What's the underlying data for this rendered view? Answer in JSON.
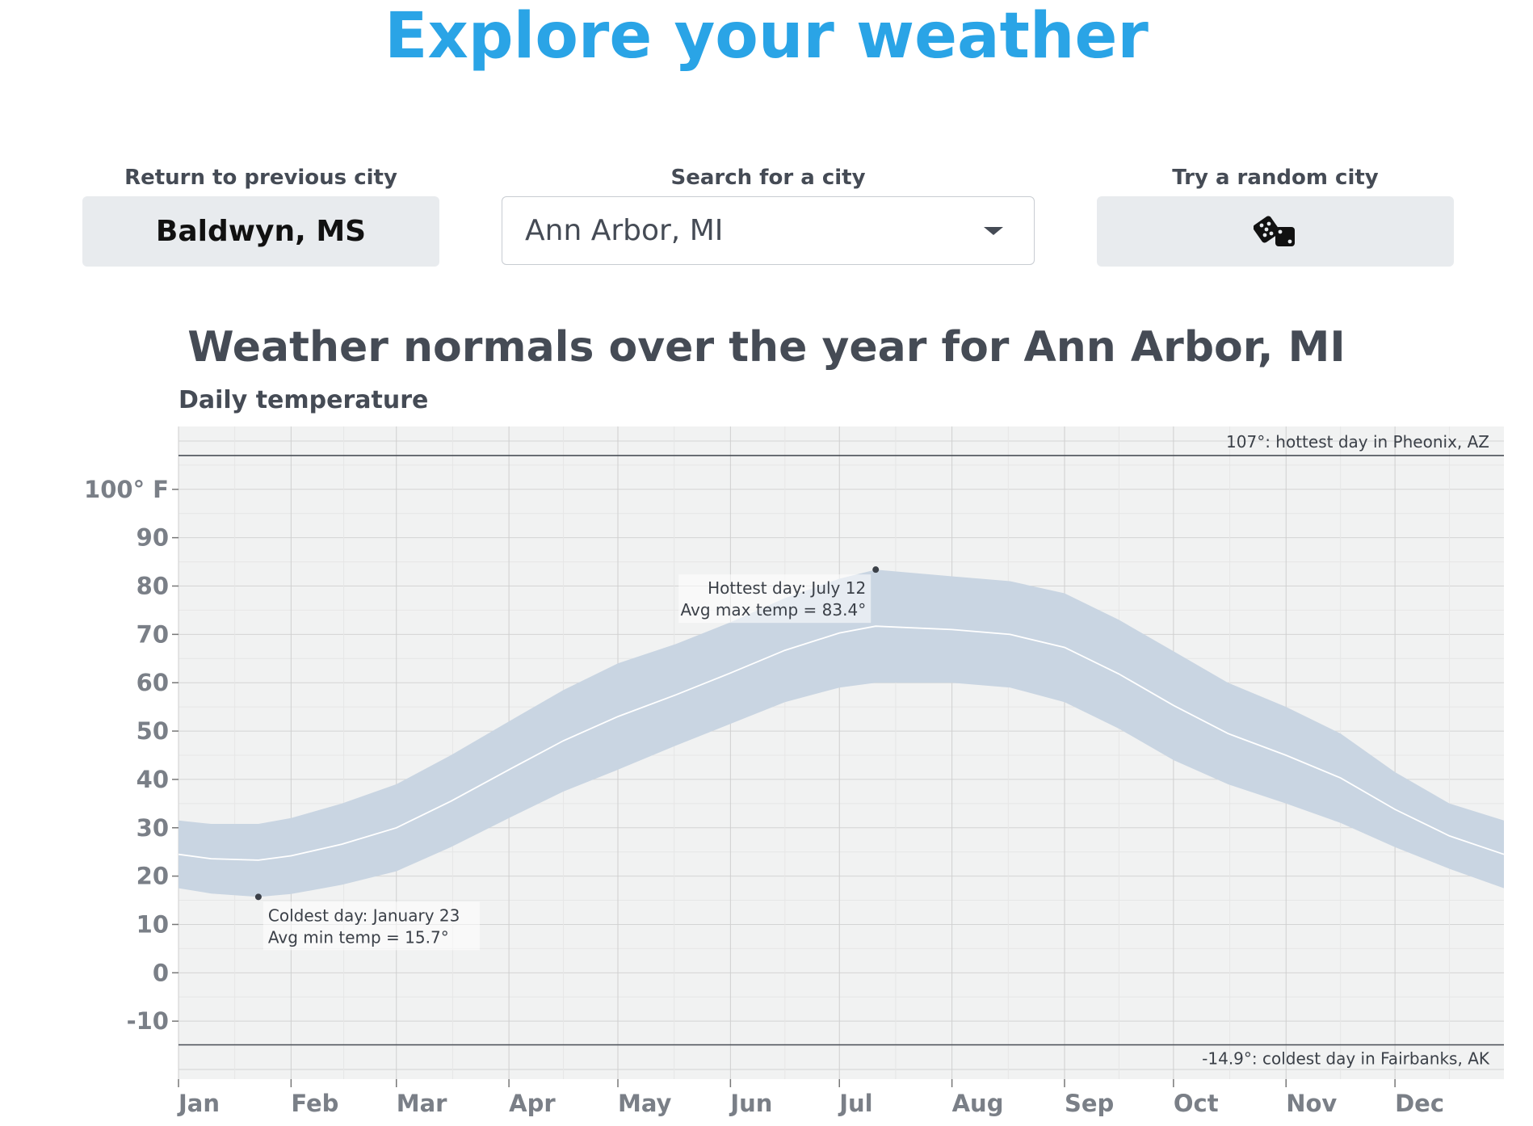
{
  "header": {
    "title": "Explore your weather"
  },
  "controls": {
    "previous": {
      "label": "Return to previous city",
      "value": "Baldwyn, MS"
    },
    "search": {
      "label": "Search for a city",
      "value": "Ann Arbor, MI"
    },
    "random": {
      "label": "Try a random city",
      "icon": "dice-icon"
    }
  },
  "section": {
    "title": "Weather normals over the year for Ann Arbor, MI"
  },
  "chart_data": {
    "type": "area",
    "title": "Daily temperature",
    "y_unit_label": "100° F",
    "yticks": [
      100,
      90,
      80,
      70,
      60,
      50,
      40,
      30,
      20,
      10,
      0,
      -10
    ],
    "ylim": [
      -22,
      113
    ],
    "xlim": [
      1,
      366
    ],
    "months": [
      {
        "label": "Jan",
        "day": 1
      },
      {
        "label": "Feb",
        "day": 32
      },
      {
        "label": "Mar",
        "day": 61
      },
      {
        "label": "Apr",
        "day": 92
      },
      {
        "label": "May",
        "day": 122
      },
      {
        "label": "Jun",
        "day": 153
      },
      {
        "label": "Jul",
        "day": 183
      },
      {
        "label": "Aug",
        "day": 214
      },
      {
        "label": "Sep",
        "day": 245
      },
      {
        "label": "Oct",
        "day": 275
      },
      {
        "label": "Nov",
        "day": 306
      },
      {
        "label": "Dec",
        "day": 336
      }
    ],
    "series": [
      {
        "name": "",
        "kind": "band",
        "x": [
          1,
          10,
          23,
          32,
          46,
          61,
          76,
          92,
          107,
          122,
          138,
          153,
          168,
          183,
          193,
          214,
          230,
          245,
          260,
          275,
          290,
          306,
          321,
          336,
          351,
          366
        ],
        "min": [
          17.5,
          16.4,
          15.7,
          16.3,
          18.2,
          21.0,
          26.0,
          32.0,
          37.5,
          42.0,
          47.0,
          51.5,
          56.0,
          59.0,
          60.0,
          60.0,
          59.0,
          56.0,
          50.5,
          44.0,
          39.0,
          35.0,
          31.0,
          26.0,
          21.5,
          17.5
        ],
        "max": [
          31.5,
          30.8,
          30.8,
          32.0,
          35.0,
          39.0,
          45.0,
          52.0,
          58.5,
          64.0,
          68.0,
          72.5,
          77.5,
          81.5,
          83.4,
          82.0,
          81.0,
          78.5,
          73.0,
          66.5,
          60.0,
          55.0,
          49.5,
          41.5,
          35.0,
          31.5
        ]
      },
      {
        "name": "",
        "kind": "line",
        "x": [
          1,
          10,
          23,
          32,
          46,
          61,
          76,
          92,
          107,
          122,
          138,
          153,
          168,
          183,
          193,
          214,
          230,
          245,
          260,
          275,
          290,
          306,
          321,
          336,
          351,
          366
        ],
        "avg": [
          24.5,
          23.6,
          23.3,
          24.2,
          26.6,
          30.0,
          35.5,
          42.0,
          48.0,
          53.0,
          57.5,
          62.0,
          66.7,
          70.3,
          71.7,
          71.0,
          70.0,
          67.3,
          61.8,
          55.3,
          49.5,
          45.0,
          40.3,
          33.8,
          28.3,
          24.5
        ]
      }
    ],
    "reference_lines": [
      {
        "value": 107,
        "label": "107°: hottest day in Pheonix, AZ"
      },
      {
        "value": -14.9,
        "label": "-14.9°: coldest day in Fairbanks, AK"
      }
    ],
    "annotations": [
      {
        "day": 193,
        "value": 83.4,
        "line1": "Hottest day: July 12",
        "line2": "Avg max temp = 83.4°"
      },
      {
        "day": 23,
        "value": 15.7,
        "line1": "Coldest day: January 23",
        "line2": "Avg min temp = 15.7°"
      }
    ],
    "grid": true,
    "colors": {
      "band": "#c9d5e2",
      "avg_line": "#ffffff",
      "plot_bg": "#f1f2f2",
      "grid": "#d9d9d9"
    }
  }
}
